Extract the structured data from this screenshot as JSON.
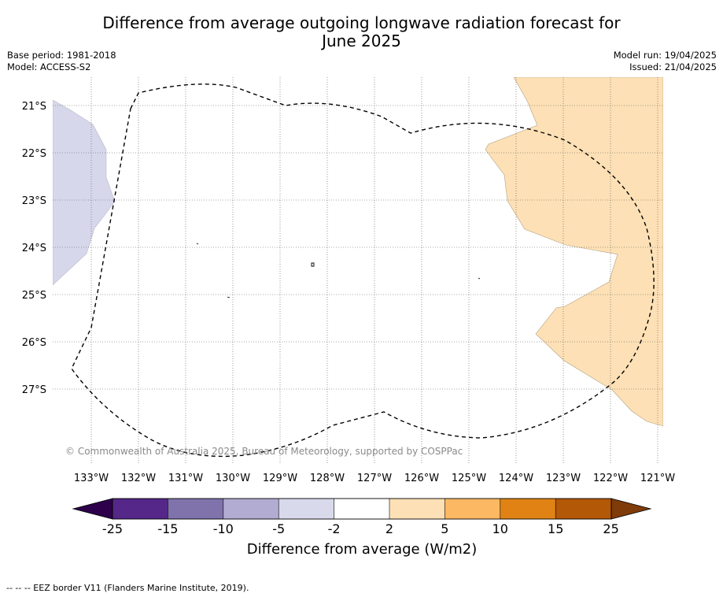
{
  "title_line1": "Difference from average outgoing longwave radiation forecast for",
  "title_line2": "June 2025",
  "base_period": "Base period: 1981-2018",
  "model": "Model: ACCESS-S2",
  "model_run": "Model run: 19/04/2025",
  "issued": "Issued: 21/04/2025",
  "copyright": "© Commonwealth of Australia 2025, Bureau of Meteorology, supported by COSPPac",
  "footer_note": "-- -- -- EEZ border V11 (Flanders Marine Institute, 2019).",
  "map": {
    "lat_labels": [
      "21°S",
      "22°S",
      "23°S",
      "24°S",
      "25°S",
      "26°S",
      "27°S"
    ],
    "lon_labels": [
      "133°W",
      "132°W",
      "131°W",
      "130°W",
      "129°W",
      "128°W",
      "127°W",
      "126°W",
      "125°W",
      "124°W",
      "123°W",
      "122°W",
      "121°W"
    ],
    "colors": {
      "below_-2": "#d7d7eb",
      "above_2": "#fde0b5",
      "eez_border": "#000000",
      "gridline": "#555555"
    }
  },
  "colorbar": {
    "label": "Difference from average (W/m2)",
    "ticks": [
      "-25",
      "-15",
      "-10",
      "-5",
      "-2",
      "2",
      "5",
      "10",
      "15",
      "25"
    ],
    "colors": [
      "#2d004b",
      "#542788",
      "#8073ac",
      "#b2abd2",
      "#d8daeb",
      "#ffffff",
      "#fee0b6",
      "#fdb863",
      "#e08214",
      "#b35806",
      "#7f3b08"
    ]
  }
}
